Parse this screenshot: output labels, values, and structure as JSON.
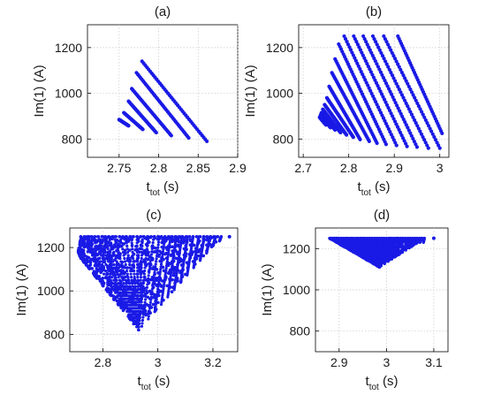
{
  "figure": {
    "marker_color": "#1a1ae6",
    "chart_data": [
      {
        "type": "scatter",
        "title": "(a)",
        "xlabel": "t_tot (s)",
        "ylabel": "Im(1) (A)",
        "xlim": [
          2.71,
          2.9
        ],
        "ylim": [
          720,
          1300
        ],
        "xticks": [
          2.75,
          2.8,
          2.85,
          2.9
        ],
        "xtick_labels": [
          "2.75",
          "2.8",
          "2.85",
          "2.9"
        ],
        "yticks": [
          800,
          1000,
          1200
        ],
        "ytick_labels": [
          "800",
          "1000",
          "1200"
        ],
        "grid": true,
        "streaks": [
          {
            "from": [
              2.779,
              1140
            ],
            "to": [
              2.861,
              790
            ]
          },
          {
            "from": [
              2.772,
              1090
            ],
            "to": [
              2.838,
              805
            ]
          },
          {
            "from": [
              2.766,
              1020
            ],
            "to": [
              2.816,
              815
            ]
          },
          {
            "from": [
              2.762,
              965
            ],
            "to": [
              2.797,
              828
            ]
          },
          {
            "from": [
              2.756,
              915
            ],
            "to": [
              2.78,
              842
            ]
          },
          {
            "from": [
              2.75,
              885
            ],
            "to": [
              2.762,
              858
            ]
          }
        ]
      },
      {
        "type": "scatter",
        "title": "(b)",
        "xlabel": "t_tot (s)",
        "ylabel": "Im(1) (A)",
        "xlim": [
          2.69,
          3.02
        ],
        "ylim": [
          720,
          1300
        ],
        "xticks": [
          2.7,
          2.8,
          2.9,
          3.0
        ],
        "xtick_labels": [
          "2.7",
          "2.8",
          "2.9",
          "3"
        ],
        "yticks": [
          800,
          1000,
          1200
        ],
        "ytick_labels": [
          "800",
          "1000",
          "1200"
        ],
        "grid": true,
        "streaks": [
          {
            "from": [
              2.908,
              1250
            ],
            "to": [
              3.005,
              825
            ]
          },
          {
            "from": [
              2.877,
              1250
            ],
            "to": [
              3.0,
              760
            ]
          },
          {
            "from": [
              2.853,
              1250
            ],
            "to": [
              2.975,
              760
            ]
          },
          {
            "from": [
              2.832,
              1250
            ],
            "to": [
              2.95,
              765
            ]
          },
          {
            "from": [
              2.811,
              1250
            ],
            "to": [
              2.928,
              768
            ]
          },
          {
            "from": [
              2.79,
              1250
            ],
            "to": [
              2.905,
              772
            ]
          },
          {
            "from": [
              2.778,
              1215
            ],
            "to": [
              2.882,
              777
            ]
          },
          {
            "from": [
              2.77,
              1150
            ],
            "to": [
              2.862,
              782
            ]
          },
          {
            "from": [
              2.763,
              1090
            ],
            "to": [
              2.845,
              790
            ]
          },
          {
            "from": [
              2.757,
              1030
            ],
            "to": [
              2.825,
              798
            ]
          },
          {
            "from": [
              2.752,
              980
            ],
            "to": [
              2.81,
              808
            ]
          },
          {
            "from": [
              2.747,
              950
            ],
            "to": [
              2.795,
              818
            ]
          },
          {
            "from": [
              2.743,
              930
            ],
            "to": [
              2.782,
              828
            ]
          },
          {
            "from": [
              2.74,
              915
            ],
            "to": [
              2.77,
              840
            ]
          },
          {
            "from": [
              2.738,
              905
            ],
            "to": [
              2.76,
              850
            ]
          },
          {
            "from": [
              2.736,
              895
            ],
            "to": [
              2.75,
              862
            ]
          }
        ]
      },
      {
        "type": "scatter",
        "title": "(c)",
        "xlabel": "t_tot (s)",
        "ylabel": "Im(1) (A)",
        "xlim": [
          2.68,
          3.29
        ],
        "ylim": [
          720,
          1290
        ],
        "xticks": [
          2.8,
          3.0,
          3.2
        ],
        "xtick_labels": [
          "2.8",
          "3",
          "3.2"
        ],
        "yticks": [
          800,
          1000,
          1200
        ],
        "ytick_labels": [
          "800",
          "1000",
          "1200"
        ],
        "grid": true,
        "fan": {
          "peak": [
            2.93,
            820
          ],
          "left_edge": [
            [
              2.72,
              1150
            ],
            [
              2.71,
              1180
            ],
            [
              2.72,
              1245
            ]
          ],
          "right_edge_top_x": 3.23,
          "top_y": 1250,
          "isolated_point": [
            3.26,
            1250
          ]
        }
      },
      {
        "type": "scatter",
        "title": "(d)",
        "xlabel": "t_tot (s)",
        "ylabel": "Im(1) (A)",
        "xlim": [
          2.85,
          3.13
        ],
        "ylim": [
          700,
          1300
        ],
        "xticks": [
          2.9,
          3.0,
          3.1
        ],
        "xtick_labels": [
          "2.9",
          "3",
          "3.1"
        ],
        "yticks": [
          800,
          1000,
          1200
        ],
        "ytick_labels": [
          "800",
          "1000",
          "1200"
        ],
        "grid": true,
        "fan": {
          "peak": [
            2.985,
            1110
          ],
          "left_edge": [
            [
              2.88,
              1250
            ]
          ],
          "right_edge_top_x": 3.08,
          "top_y": 1250,
          "isolated_point": [
            3.1,
            1250
          ]
        }
      }
    ]
  }
}
